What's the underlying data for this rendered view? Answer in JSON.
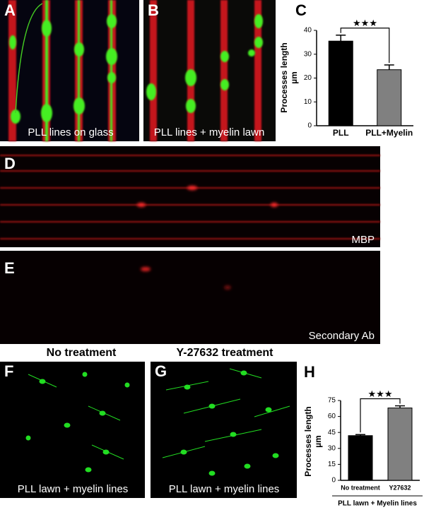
{
  "panels": [
    {
      "letter": "A",
      "caption": "PLL lines on glass"
    },
    {
      "letter": "B",
      "caption": "PLL lines + myelin lawn"
    },
    {
      "letter": "D",
      "caption": "MBP"
    },
    {
      "letter": "E",
      "caption": "Secondary Ab"
    },
    {
      "letter": "F",
      "title": "No treatment",
      "caption": "PLL lawn + myelin lines"
    },
    {
      "letter": "G",
      "title": "Y-27632 treatment",
      "caption": "PLL lawn + myelin lines"
    }
  ],
  "chart_data": [
    {
      "type": "bar",
      "letter": "C",
      "y_label": "Processes length",
      "y_unit": "µm",
      "categories": [
        "PLL",
        "PLL+Myelin"
      ],
      "values": [
        35.5,
        23.5
      ],
      "errors": [
        2.5,
        2
      ],
      "colors": [
        "#000000",
        "#808080"
      ],
      "significance": "★★★",
      "ylim": [
        0,
        40
      ],
      "yticks": [
        0,
        10,
        20,
        30,
        40
      ]
    },
    {
      "type": "bar",
      "letter": "H",
      "y_label": "Processes length",
      "y_unit": "µm",
      "categories": [
        "No treatment",
        "Y27632"
      ],
      "values": [
        42,
        68
      ],
      "errors": [
        1,
        2
      ],
      "colors": [
        "#000000",
        "#808080"
      ],
      "significance": "★★★",
      "x_label": "PLL lawn + Myelin lines",
      "ylim": [
        0,
        75
      ],
      "yticks": [
        0,
        15,
        30,
        45,
        60,
        75
      ]
    }
  ]
}
